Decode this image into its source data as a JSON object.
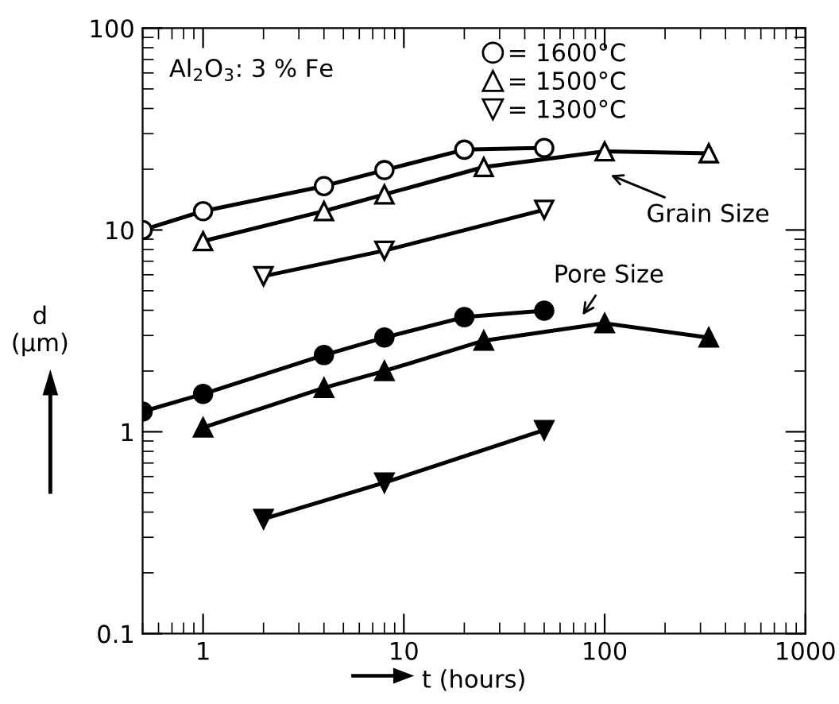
{
  "chart_data": {
    "type": "line",
    "log": "xy",
    "xlabel": "t (hours)",
    "ylabel": "d\n(μm)",
    "xlim": [
      0.5,
      1000
    ],
    "ylim": [
      0.1,
      100
    ],
    "xticks": [
      1,
      10,
      100,
      1000
    ],
    "yticks": [
      0.1,
      1,
      10,
      100
    ],
    "grid": false,
    "legend": "top",
    "line_style": "solid",
    "annotations": [
      "Al$_{2}$O$_{3}$: 3 % Fe",
      "Grain Size",
      "Pore Size"
    ],
    "series": [
      {
        "name": "= 1600°C",
        "color": "#000000",
        "marker": "circle",
        "x": [
          0.5,
          1,
          4,
          8,
          20,
          50
        ],
        "values": [
          10,
          12.4,
          16.5,
          19.8,
          25,
          25.5
        ]
      },
      {
        "name": "= 1500°C",
        "color": "#000000",
        "marker": "triangle",
        "x": [
          1,
          4,
          8,
          25,
          100,
          330
        ],
        "values": [
          8.8,
          12.4,
          15,
          20.5,
          24.5,
          24
        ]
      },
      {
        "name": "= 1300°C",
        "color": "#000000",
        "marker": "triangle_down",
        "x": [
          2,
          8,
          50
        ],
        "values": [
          5.9,
          7.9,
          12.6
        ]
      },
      {
        "color": "#000000",
        "marker": "circle",
        "x": [
          0.5,
          1,
          4,
          8,
          20,
          50
        ],
        "values": [
          1.26,
          1.54,
          2.4,
          2.93,
          3.7,
          3.98
        ]
      },
      {
        "color": "#000000",
        "marker": "triangle",
        "x": [
          1,
          4,
          8,
          25,
          100,
          330
        ],
        "values": [
          1.05,
          1.65,
          2.0,
          2.83,
          3.45,
          2.93
        ]
      },
      {
        "color": "#000000",
        "marker": "triangle_down",
        "x": [
          2,
          8,
          50
        ],
        "values": [
          0.37,
          0.56,
          1.02
        ]
      }
    ]
  }
}
